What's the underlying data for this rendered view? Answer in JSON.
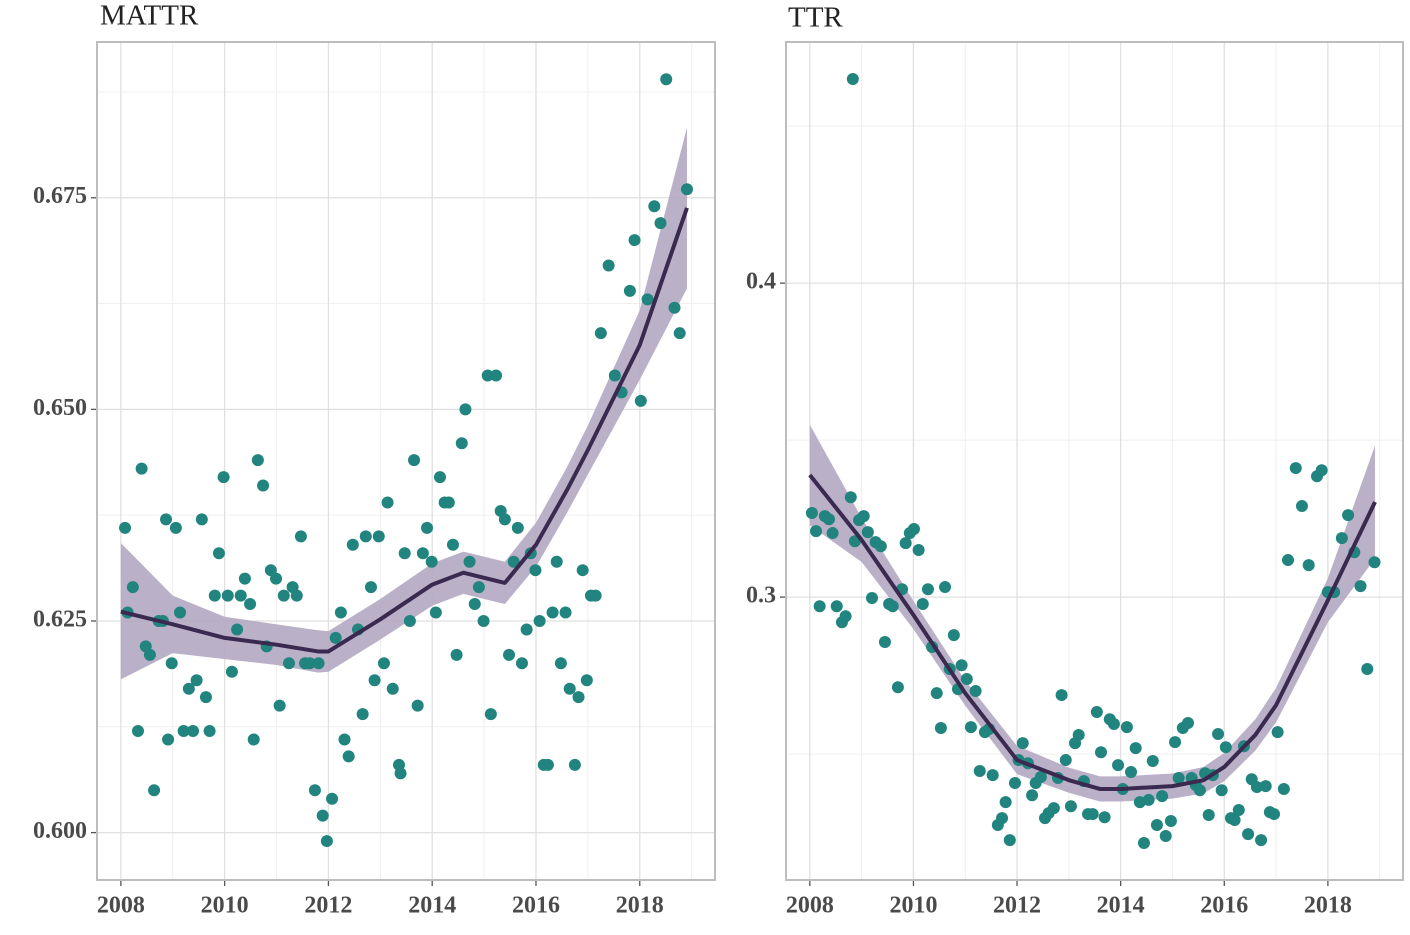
{
  "chart_data": [
    {
      "type": "scatter",
      "title": "MATTR",
      "xlim": [
        2007.54,
        2019.45
      ],
      "ylim": [
        0.5944,
        0.6934
      ],
      "xticks": [
        2008,
        2010,
        2012,
        2014,
        2016,
        2018
      ],
      "minor_xticks": [
        2009,
        2011,
        2013,
        2015,
        2017,
        2019
      ],
      "yticks": [
        {
          "value": 0.6,
          "label": "0.600"
        },
        0.625,
        {
          "value": 0.65,
          "label": "0.650"
        },
        0.675
      ],
      "minor_yticks": [
        0.6125,
        0.6375,
        0.6625,
        0.6875
      ],
      "grid": true,
      "color": "#21847e",
      "line_color": "#3b2a4f",
      "band_color": "#b3a7c2",
      "x": [
        2008.08,
        2008.13,
        2008.23,
        2008.33,
        2008.4,
        2008.48,
        2008.56,
        2008.64,
        2008.73,
        2008.81,
        2008.87,
        2008.91,
        2008.98,
        2009.06,
        2009.14,
        2009.21,
        2009.31,
        2009.39,
        2009.46,
        2009.56,
        2009.64,
        2009.71,
        2009.81,
        2009.89,
        2009.98,
        2010.06,
        2010.14,
        2010.24,
        2010.31,
        2010.39,
        2010.49,
        2010.56,
        2010.64,
        2010.74,
        2010.81,
        2010.89,
        2010.99,
        2011.06,
        2011.14,
        2011.24,
        2011.31,
        2011.39,
        2011.47,
        2011.55,
        2011.64,
        2011.74,
        2011.81,
        2011.89,
        2011.97,
        2012.07,
        2012.14,
        2012.24,
        2012.31,
        2012.39,
        2012.47,
        2012.57,
        2012.66,
        2012.72,
        2012.82,
        2012.89,
        2012.97,
        2013.07,
        2013.14,
        2013.24,
        2013.36,
        2013.39,
        2013.47,
        2013.57,
        2013.65,
        2013.72,
        2013.82,
        2013.9,
        2013.99,
        2014.07,
        2014.15,
        2014.24,
        2014.32,
        2014.4,
        2014.47,
        2014.57,
        2014.64,
        2014.72,
        2014.82,
        2014.9,
        2014.99,
        2015.07,
        2015.13,
        2015.23,
        2015.32,
        2015.4,
        2015.48,
        2015.57,
        2015.65,
        2015.73,
        2015.82,
        2015.9,
        2015.99,
        2016.07,
        2016.15,
        2016.23,
        2016.32,
        2016.4,
        2016.48,
        2016.57,
        2016.65,
        2016.75,
        2016.82,
        2016.9,
        2016.98,
        2017.06,
        2017.15,
        2017.25,
        2017.4,
        2017.52,
        2017.65,
        2017.81,
        2017.9,
        2018.02,
        2018.15,
        2018.28,
        2018.4,
        2018.51,
        2018.67,
        2018.77,
        2018.91
      ],
      "values": [
        0.636,
        0.626,
        0.629,
        0.612,
        0.643,
        0.622,
        0.621,
        0.605,
        0.625,
        0.625,
        0.637,
        0.611,
        0.62,
        0.636,
        0.626,
        0.612,
        0.617,
        0.612,
        0.618,
        0.637,
        0.616,
        0.612,
        0.628,
        0.633,
        0.642,
        0.628,
        0.619,
        0.624,
        0.628,
        0.63,
        0.627,
        0.611,
        0.644,
        0.641,
        0.622,
        0.631,
        0.63,
        0.615,
        0.628,
        0.62,
        0.629,
        0.628,
        0.635,
        0.62,
        0.62,
        0.605,
        0.62,
        0.602,
        0.599,
        0.604,
        0.623,
        0.626,
        0.611,
        0.609,
        0.634,
        0.624,
        0.614,
        0.635,
        0.629,
        0.618,
        0.635,
        0.62,
        0.639,
        0.617,
        0.608,
        0.607,
        0.633,
        0.625,
        0.644,
        0.615,
        0.633,
        0.636,
        0.632,
        0.626,
        0.642,
        0.639,
        0.639,
        0.634,
        0.621,
        0.646,
        0.65,
        0.632,
        0.627,
        0.629,
        0.625,
        0.654,
        0.614,
        0.654,
        0.638,
        0.637,
        0.621,
        0.632,
        0.636,
        0.62,
        0.624,
        0.633,
        0.631,
        0.625,
        0.608,
        0.608,
        0.626,
        0.632,
        0.62,
        0.626,
        0.617,
        0.608,
        0.616,
        0.631,
        0.618,
        0.628,
        0.628,
        0.659,
        0.667,
        0.654,
        0.652,
        0.664,
        0.67,
        0.651,
        0.663,
        0.674,
        0.672,
        0.689,
        0.662,
        0.659,
        0.676
      ],
      "smooth": {
        "x": [
          2008.0,
          2009,
          2010,
          2011,
          2011.8,
          2012,
          2013,
          2014,
          2014.6,
          2015,
          2015.4,
          2016,
          2016.6,
          2017,
          2018,
          2018.91
        ],
        "values": [
          0.6261,
          0.6246,
          0.623,
          0.6222,
          0.6214,
          0.6214,
          0.6252,
          0.6293,
          0.6307,
          0.6301,
          0.6295,
          0.634,
          0.6405,
          0.6452,
          0.6576,
          0.6738
        ],
        "lower": [
          0.6181,
          0.6212,
          0.6205,
          0.6198,
          0.6189,
          0.619,
          0.6228,
          0.6268,
          0.6282,
          0.6276,
          0.627,
          0.6314,
          0.6378,
          0.6423,
          0.6535,
          0.6643
        ],
        "upper": [
          0.6342,
          0.628,
          0.6255,
          0.6246,
          0.6239,
          0.6238,
          0.6276,
          0.6318,
          0.6332,
          0.6326,
          0.632,
          0.6366,
          0.6432,
          0.6481,
          0.6617,
          0.6833
        ]
      }
    },
    {
      "type": "scatter",
      "title": "TTR",
      "xlim": [
        2007.54,
        2019.45
      ],
      "ylim": [
        0.2099,
        0.4768
      ],
      "xticks": [
        2008,
        2010,
        2012,
        2014,
        2016,
        2018
      ],
      "minor_xticks": [
        2009,
        2011,
        2013,
        2015,
        2017,
        2019
      ],
      "yticks": [
        0.3,
        0.4
      ],
      "minor_yticks": [
        0.25,
        0.35,
        0.45
      ],
      "grid": true,
      "color": "#21847e",
      "line_color": "#3b2a4f",
      "band_color": "#b3a7c2",
      "x": [
        2008.04,
        2008.12,
        2008.19,
        2008.29,
        2008.37,
        2008.44,
        2008.52,
        2008.62,
        2008.69,
        2008.79,
        2008.83,
        2008.87,
        2008.95,
        2009.04,
        2009.12,
        2009.2,
        2009.27,
        2009.37,
        2009.45,
        2009.53,
        2009.6,
        2009.7,
        2009.78,
        2009.85,
        2009.93,
        2010.01,
        2010.1,
        2010.18,
        2010.28,
        2010.36,
        2010.45,
        2010.53,
        2010.61,
        2010.7,
        2010.78,
        2010.86,
        2010.93,
        2011.03,
        2011.11,
        2011.2,
        2011.28,
        2011.38,
        2011.46,
        2011.53,
        2011.63,
        2011.71,
        2011.78,
        2011.86,
        2011.96,
        2012.03,
        2012.11,
        2012.21,
        2012.29,
        2012.36,
        2012.46,
        2012.54,
        2012.61,
        2012.71,
        2012.79,
        2012.86,
        2012.94,
        2013.04,
        2013.12,
        2013.19,
        2013.29,
        2013.37,
        2013.46,
        2013.54,
        2013.62,
        2013.69,
        2013.79,
        2013.87,
        2013.95,
        2014.04,
        2014.12,
        2014.2,
        2014.29,
        2014.37,
        2014.45,
        2014.54,
        2014.62,
        2014.7,
        2014.8,
        2014.87,
        2014.97,
        2015.05,
        2015.12,
        2015.2,
        2015.3,
        2015.37,
        2015.45,
        2015.53,
        2015.63,
        2015.7,
        2015.78,
        2015.88,
        2015.95,
        2016.03,
        2016.13,
        2016.2,
        2016.28,
        2016.38,
        2016.46,
        2016.53,
        2016.63,
        2016.71,
        2016.8,
        2016.88,
        2016.96,
        2017.03,
        2017.15,
        2017.23,
        2017.38,
        2017.5,
        2017.63,
        2017.79,
        2017.88,
        2018.0,
        2018.12,
        2018.27,
        2018.39,
        2018.51,
        2018.63,
        2018.76,
        2018.9
      ],
      "values": [
        0.3268,
        0.321,
        0.2971,
        0.3258,
        0.3248,
        0.3204,
        0.2971,
        0.292,
        0.2939,
        0.3318,
        0.465,
        0.3178,
        0.3245,
        0.3258,
        0.3207,
        0.2997,
        0.3175,
        0.3162,
        0.2857,
        0.2978,
        0.2971,
        0.2713,
        0.3025,
        0.3172,
        0.3204,
        0.3217,
        0.315,
        0.2978,
        0.3025,
        0.2841,
        0.2694,
        0.2583,
        0.3032,
        0.2771,
        0.2879,
        0.2707,
        0.2783,
        0.2739,
        0.2586,
        0.2701,
        0.2446,
        0.257,
        0.258,
        0.2433,
        0.2274,
        0.2296,
        0.2347,
        0.2226,
        0.2408,
        0.2481,
        0.2535,
        0.2471,
        0.2369,
        0.2408,
        0.2427,
        0.2296,
        0.2312,
        0.2328,
        0.2424,
        0.2688,
        0.2481,
        0.2334,
        0.2535,
        0.2561,
        0.2414,
        0.2309,
        0.2309,
        0.2634,
        0.2506,
        0.2299,
        0.2611,
        0.2596,
        0.2465,
        0.2389,
        0.2586,
        0.2443,
        0.2519,
        0.2347,
        0.2217,
        0.2354,
        0.2478,
        0.2274,
        0.2366,
        0.2239,
        0.2287,
        0.2538,
        0.2424,
        0.2583,
        0.2599,
        0.2424,
        0.2401,
        0.2385,
        0.2439,
        0.2306,
        0.2433,
        0.2564,
        0.2385,
        0.2522,
        0.2296,
        0.229,
        0.2322,
        0.2525,
        0.2245,
        0.242,
        0.2395,
        0.2226,
        0.2398,
        0.2315,
        0.2309,
        0.257,
        0.2389,
        0.3118,
        0.3411,
        0.329,
        0.3102,
        0.3385,
        0.3404,
        0.3016,
        0.3016,
        0.3188,
        0.3261,
        0.3143,
        0.3035,
        0.2771,
        0.3111
      ],
      "smooth": {
        "x": [
          2008.0,
          2009,
          2010,
          2011,
          2012,
          2013,
          2013.6,
          2014,
          2015,
          2015.6,
          2016,
          2016.6,
          2017,
          2018,
          2018.91
        ],
        "values": [
          0.3389,
          0.3182,
          0.2943,
          0.2694,
          0.2481,
          0.2417,
          0.2389,
          0.2389,
          0.2398,
          0.2417,
          0.2459,
          0.2561,
          0.2656,
          0.299,
          0.3303
        ],
        "lower": [
          0.3229,
          0.3112,
          0.2898,
          0.2654,
          0.2436,
          0.2377,
          0.2349,
          0.2349,
          0.2358,
          0.2375,
          0.2414,
          0.2511,
          0.2601,
          0.292,
          0.3123
        ],
        "upper": [
          0.3549,
          0.3252,
          0.2988,
          0.2734,
          0.2526,
          0.2457,
          0.2429,
          0.2429,
          0.2438,
          0.2459,
          0.2504,
          0.2611,
          0.2711,
          0.306,
          0.3483
        ]
      }
    }
  ]
}
